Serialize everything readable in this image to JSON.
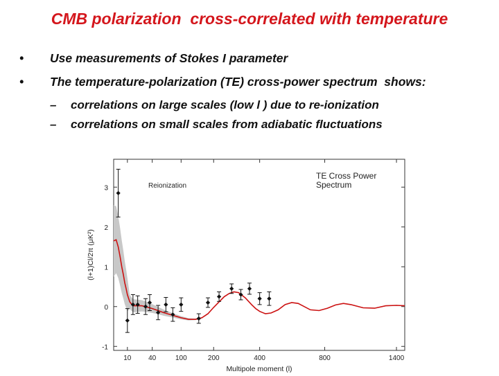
{
  "slide": {
    "title": "CMB polarization  cross-correlated with temperature",
    "bullets": [
      {
        "marker": "•",
        "text": "Use measurements of Stokes I parameter"
      },
      {
        "marker": "•",
        "text": "The temperature-polarization (TE) cross-power spectrum  shows:"
      }
    ],
    "sub_bullets": [
      {
        "marker": "–",
        "text": "correlations on large scales (low l ) due to re-ionization"
      },
      {
        "marker": "–",
        "text": "correlations on small scales from adiabatic fluctuations"
      }
    ]
  },
  "colors": {
    "title": "#d4161c",
    "model_line": "#cc1111",
    "error_band": "#c8c8c8",
    "points": "#111111"
  },
  "chart_data": {
    "type": "scatter",
    "title": "TE Cross Power Spectrum",
    "title_lines": [
      "TE Cross Power",
      "Spectrum"
    ],
    "annotation": "Reionization",
    "xlabel": "Multipole moment (l)",
    "ylabel": "(l+1)Cl/2π (μK²)",
    "x_scale": "nonlinear (l^0.5 compressed)",
    "x_ticks": [
      10,
      40,
      100,
      200,
      400,
      800,
      1400
    ],
    "x_tick_labels": [
      "10",
      "40",
      "100",
      "200",
      "400",
      "800",
      "1400"
    ],
    "y_ticks": [
      -1,
      0,
      1,
      2,
      3
    ],
    "y_tick_labels": [
      "-1",
      "0",
      "1",
      "2",
      "3"
    ],
    "ylim": [
      -1.1,
      3.7
    ],
    "grid": false,
    "series": [
      {
        "kind": "points",
        "x": [
          4,
          10,
          15,
          20,
          30,
          36,
          50,
          65,
          80,
          100,
          150,
          180,
          220,
          270,
          310,
          350,
          400,
          450
        ],
        "y": [
          2.85,
          -0.35,
          0.05,
          0.05,
          0.0,
          0.1,
          -0.15,
          0.05,
          -0.2,
          0.05,
          -0.3,
          0.1,
          0.25,
          0.45,
          0.3,
          0.45,
          0.2,
          0.2
        ],
        "err": [
          0.6,
          0.3,
          0.25,
          0.22,
          0.2,
          0.2,
          0.18,
          0.18,
          0.17,
          0.17,
          0.12,
          0.12,
          0.12,
          0.12,
          0.13,
          0.14,
          0.15,
          0.17
        ]
      },
      {
        "kind": "model",
        "x": [
          2,
          3,
          4,
          5,
          6,
          7,
          8,
          9,
          10,
          12,
          14,
          16,
          20,
          25,
          30,
          40,
          50,
          60,
          80,
          100,
          120,
          140,
          160,
          180,
          200,
          220,
          240,
          260,
          280,
          300,
          330,
          360,
          380,
          400,
          430,
          460,
          500,
          540,
          580,
          620,
          660,
          700,
          760,
          820,
          880,
          940,
          1000,
          1100,
          1200,
          1300,
          1400,
          1480
        ],
        "y": [
          1.65,
          1.68,
          1.5,
          1.25,
          1.0,
          0.8,
          0.6,
          0.45,
          0.3,
          0.12,
          0.05,
          0.02,
          0.02,
          0.02,
          0.0,
          -0.05,
          -0.1,
          -0.15,
          -0.22,
          -0.28,
          -0.32,
          -0.32,
          -0.28,
          -0.18,
          -0.02,
          0.12,
          0.25,
          0.33,
          0.37,
          0.35,
          0.22,
          0.05,
          -0.05,
          -0.12,
          -0.18,
          -0.16,
          -0.08,
          0.05,
          0.1,
          0.08,
          0.0,
          -0.08,
          -0.1,
          -0.04,
          0.04,
          0.08,
          0.05,
          -0.03,
          -0.04,
          0.02,
          0.03,
          0.02
        ]
      }
    ]
  }
}
